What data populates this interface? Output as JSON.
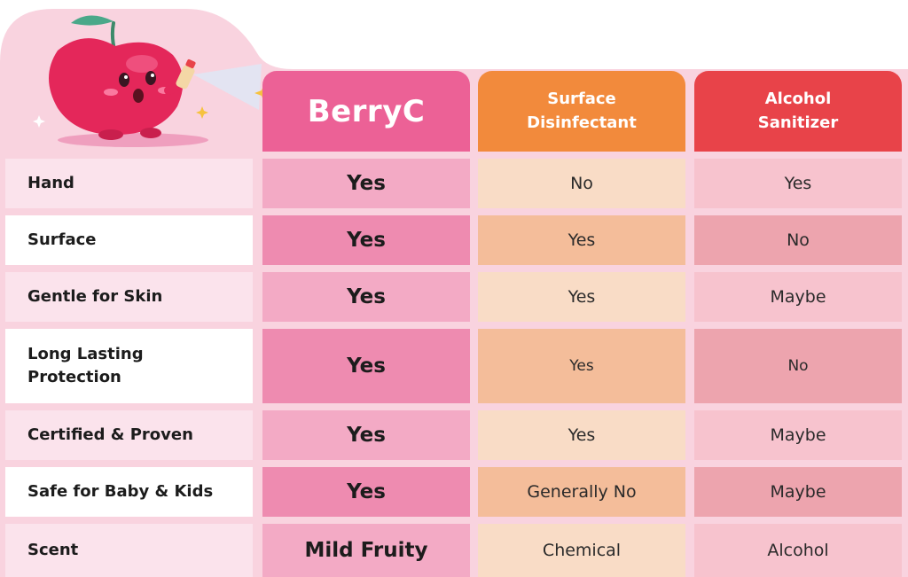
{
  "header": {
    "berryc": "BerryC",
    "surface_line1": "Surface",
    "surface_line2": "Disinfectant",
    "alcohol_line1": "Alcohol",
    "alcohol_line2": "Sanitizer"
  },
  "rows": [
    {
      "label": "Hand",
      "berryc": "Yes",
      "surface": "No",
      "alcohol": "Yes"
    },
    {
      "label": "Surface",
      "berryc": "Yes",
      "surface": "Yes",
      "alcohol": "No"
    },
    {
      "label": "Gentle for Skin",
      "berryc": "Yes",
      "surface": "Yes",
      "alcohol": "Maybe"
    },
    {
      "label_line1": "Long Lasting",
      "label_line2": "Protection",
      "berryc": "Yes",
      "surface": "Yes",
      "alcohol": "No"
    },
    {
      "label": "Certified & Proven",
      "berryc": "Yes",
      "surface": "Yes",
      "alcohol": "Maybe"
    },
    {
      "label": "Safe for Baby & Kids",
      "berryc": "Yes",
      "surface": "Generally No",
      "alcohol": "Maybe"
    },
    {
      "label": "Scent",
      "berryc": "Mild Fruity",
      "surface": "Chemical",
      "alcohol": "Alcohol"
    }
  ],
  "colors": {
    "berryc": "#ec6196",
    "surface": "#f28a3c",
    "alcohol": "#e84349",
    "background_pink": "#f9d3df"
  },
  "icons": {
    "mascot": "cherry-mascot-spraying"
  }
}
